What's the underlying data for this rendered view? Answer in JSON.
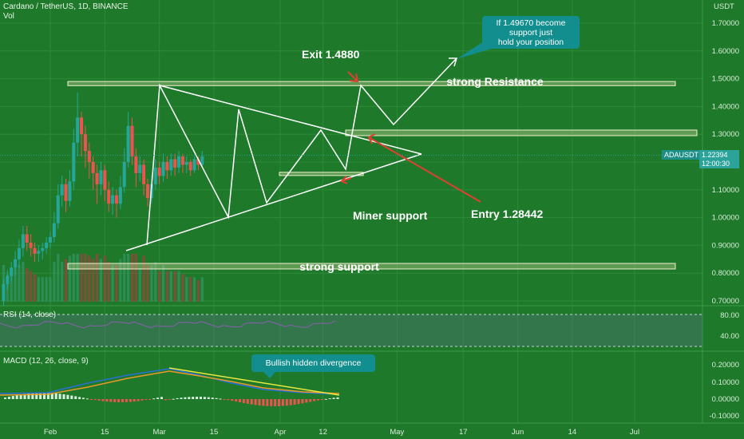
{
  "header": {
    "symbol_line": "Cardano / TetherUS, 1D, BINANCE",
    "vol_label": "Vol",
    "currency": "USDT"
  },
  "colors": {
    "background": "#1e7a2a",
    "bull_candle": "#26a69a",
    "bear_candle": "#ef5350",
    "pattern_line": "#ffffff",
    "zone_fill": "#d8dba0",
    "arrow_red": "#e04030",
    "callout_teal": "#138e8e",
    "divergence_line": "#e8e840"
  },
  "price_tag": {
    "value": "1.22394",
    "timer": "12:00:30",
    "symbol": "ADAUSDT"
  },
  "annotations": {
    "exit": "Exit 1.4880",
    "strong_resistance": "strong Resistance",
    "strong_support": "strong support",
    "miner_support": "Miner support",
    "entry": "Entry 1.28442",
    "callout_top": "If 1.49670 become\n support just\nhold your position",
    "callout_macd": "Bullish hidden divergence"
  },
  "rsi": {
    "label": "RSI (14, close)",
    "ticks": [
      "80.00",
      "40.00"
    ]
  },
  "macd": {
    "label": "MACD (12, 26, close, 9)",
    "ticks": [
      "0.20000",
      "0.10000",
      "0.00000",
      "-0.10000"
    ]
  },
  "chart_data": {
    "type": "candlestick",
    "title": "Cardano / TetherUS, 1D, BINANCE",
    "x_ticks": [
      "Feb",
      "15",
      "Mar",
      "15",
      "Apr",
      "12",
      "May",
      "17",
      "Jun",
      "14",
      "Jul"
    ],
    "y_ticks": [
      "1.70000",
      "1.60000",
      "1.50000",
      "1.40000",
      "1.30000",
      "1.20000",
      "1.10000",
      "1.00000",
      "0.90000",
      "0.80000",
      "0.70000"
    ],
    "ylim": [
      0.69,
      1.76
    ],
    "current_price": 1.22394,
    "zones": [
      {
        "name": "strong Resistance",
        "low": 1.475,
        "high": 1.49
      },
      {
        "name": "resistance",
        "low": 1.295,
        "high": 1.315
      },
      {
        "name": "strong support",
        "low": 0.815,
        "high": 0.835
      },
      {
        "name": "Miner support",
        "low": 1.155,
        "high": 1.163
      }
    ],
    "entry": 1.28442,
    "exit": 1.488,
    "candles": [
      [
        0.7,
        0.76,
        0.68,
        0.78
      ],
      [
        0.76,
        0.79,
        0.74,
        0.81
      ],
      [
        0.79,
        0.82,
        0.77,
        0.84
      ],
      [
        0.82,
        0.85,
        0.79,
        0.88
      ],
      [
        0.85,
        0.89,
        0.82,
        0.92
      ],
      [
        0.89,
        0.94,
        0.86,
        0.97
      ],
      [
        0.94,
        0.91,
        0.88,
        0.97
      ],
      [
        0.91,
        0.89,
        0.86,
        0.94
      ],
      [
        0.89,
        0.87,
        0.84,
        0.91
      ],
      [
        0.87,
        0.88,
        0.84,
        0.9
      ],
      [
        0.88,
        0.89,
        0.85,
        0.91
      ],
      [
        0.89,
        0.91,
        0.87,
        0.93
      ],
      [
        0.91,
        0.93,
        0.89,
        0.95
      ],
      [
        0.93,
        0.98,
        0.91,
        1.02
      ],
      [
        0.98,
        1.08,
        0.96,
        1.12
      ],
      [
        1.08,
        1.12,
        1.04,
        1.15
      ],
      [
        1.12,
        1.06,
        1.02,
        1.14
      ],
      [
        1.06,
        1.13,
        1.04,
        1.17
      ],
      [
        1.13,
        1.27,
        1.1,
        1.32
      ],
      [
        1.27,
        1.36,
        1.22,
        1.45
      ],
      [
        1.36,
        1.3,
        1.22,
        1.38
      ],
      [
        1.3,
        1.24,
        1.18,
        1.33
      ],
      [
        1.24,
        1.2,
        1.14,
        1.27
      ],
      [
        1.2,
        1.16,
        1.1,
        1.22
      ],
      [
        1.16,
        1.12,
        1.05,
        1.19
      ],
      [
        1.12,
        1.17,
        1.08,
        1.2
      ],
      [
        1.17,
        1.1,
        1.06,
        1.19
      ],
      [
        1.1,
        1.05,
        1.02,
        1.13
      ],
      [
        1.05,
        1.08,
        1.01,
        1.11
      ],
      [
        1.08,
        1.05,
        1.0,
        1.1
      ],
      [
        1.05,
        1.11,
        1.03,
        1.15
      ],
      [
        1.11,
        1.2,
        1.09,
        1.25
      ],
      [
        1.2,
        1.33,
        1.18,
        1.38
      ],
      [
        1.33,
        1.22,
        1.19,
        1.36
      ],
      [
        1.22,
        1.16,
        1.11,
        1.25
      ],
      [
        1.16,
        1.19,
        1.13,
        1.22
      ],
      [
        1.19,
        1.12,
        1.08,
        1.21
      ],
      [
        1.12,
        1.07,
        1.04,
        1.14
      ],
      [
        1.07,
        1.12,
        1.05,
        1.15
      ],
      [
        1.12,
        1.18,
        1.1,
        1.21
      ],
      [
        1.18,
        1.15,
        1.12,
        1.2
      ],
      [
        1.15,
        1.2,
        1.13,
        1.23
      ],
      [
        1.2,
        1.17,
        1.14,
        1.22
      ],
      [
        1.17,
        1.21,
        1.15,
        1.23
      ],
      [
        1.21,
        1.18,
        1.15,
        1.23
      ],
      [
        1.18,
        1.22,
        1.16,
        1.24
      ],
      [
        1.22,
        1.19,
        1.16,
        1.23
      ],
      [
        1.19,
        1.2,
        1.16,
        1.22
      ],
      [
        1.2,
        1.17,
        1.15,
        1.21
      ],
      [
        1.17,
        1.21,
        1.16,
        1.22
      ],
      [
        1.21,
        1.19,
        1.17,
        1.22
      ],
      [
        1.19,
        1.22,
        1.18,
        1.24
      ]
    ]
  }
}
